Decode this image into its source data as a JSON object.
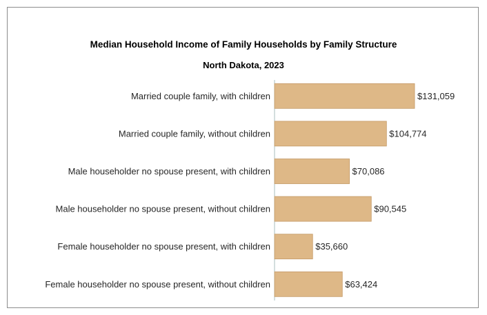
{
  "chart_data": {
    "type": "bar",
    "orientation": "horizontal",
    "title": "Median Household Income of Family Households by Family Structure",
    "subtitle": "North Dakota, 2023",
    "categories": [
      "Married couple family, with children",
      "Married couple family, without children",
      "Male householder no spouse present, with children",
      "Male householder no spouse present, without children",
      "Female householder no spouse present, with children",
      "Female householder no spouse present, without children"
    ],
    "values": [
      131059,
      104774,
      70086,
      90545,
      35660,
      63424
    ],
    "value_labels": [
      "$131,059",
      "$104,774",
      "$70,086",
      "$90,545",
      "$35,660",
      "$63,424"
    ],
    "xlim": [
      0,
      131059
    ],
    "bar_color": "#deb887",
    "bar_border_color": "#c49a66",
    "axis_color": "#a9bcbc",
    "grid": false,
    "legend": "none"
  }
}
